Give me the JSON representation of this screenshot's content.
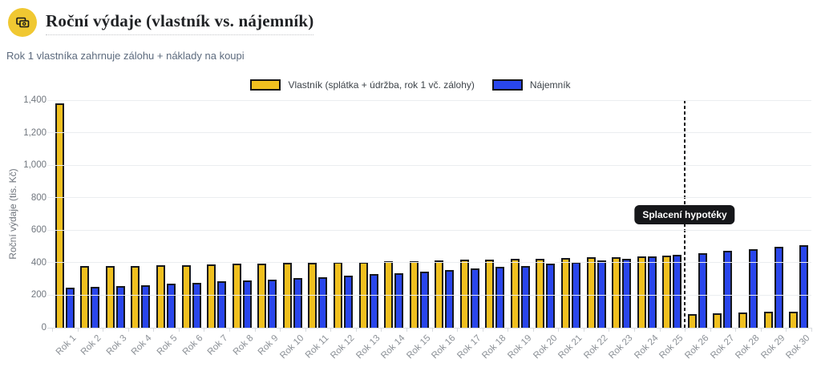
{
  "header": {
    "title": "Roční výdaje (vlastník vs. nájemník)",
    "subtitle": "Rok 1 vlastníka zahrnuje zálohu + náklady na koupi",
    "icon": "banknotes-icon",
    "icon_bg": "#F0C832"
  },
  "chart_data": {
    "type": "bar",
    "title": "Roční výdaje (vlastník vs. nájemník)",
    "xlabel": "",
    "ylabel": "Roční výdaje (tis. Kč)",
    "ylim": [
      0,
      1400
    ],
    "yticks": [
      0,
      200,
      400,
      600,
      800,
      1000,
      1200,
      1400
    ],
    "ytick_labels": [
      "0",
      "200",
      "400",
      "600",
      "800",
      "1,000",
      "1,200",
      "1,400"
    ],
    "grid": true,
    "legend_position": "top",
    "categories": [
      "Rok 1",
      "Rok 2",
      "Rok 3",
      "Rok 4",
      "Rok 5",
      "Rok 6",
      "Rok 7",
      "Rok 8",
      "Rok 9",
      "Rok 10",
      "Rok 11",
      "Rok 12",
      "Rok 13",
      "Rok 14",
      "Rok 15",
      "Rok 16",
      "Rok 17",
      "Rok 18",
      "Rok 19",
      "Rok 20",
      "Rok 21",
      "Rok 22",
      "Rok 23",
      "Rok 24",
      "Rok 25",
      "Rok 26",
      "Rok 27",
      "Rok 28",
      "Rok 29",
      "Rok 30"
    ],
    "series": [
      {
        "name": "Vlastník (splátka + údržba, rok 1 vč. zálohy)",
        "color": "#F0C01F",
        "border": "#16181d",
        "values": [
          1380,
          378,
          380,
          382,
          384,
          387,
          389,
          392,
          394,
          397,
          400,
          402,
          405,
          408,
          411,
          414,
          417,
          420,
          423,
          426,
          429,
          433,
          436,
          439,
          442,
          85,
          89,
          93,
          97,
          101
        ]
      },
      {
        "name": "Nájemník",
        "color": "#2946EC",
        "border": "#16181d",
        "values": [
          245,
          250,
          257,
          263,
          270,
          277,
          284,
          291,
          298,
          306,
          313,
          321,
          329,
          337,
          346,
          355,
          364,
          373,
          382,
          392,
          402,
          412,
          425,
          440,
          450,
          460,
          472,
          484,
          496,
          508
        ]
      }
    ],
    "marker_line": {
      "label": "Splacení hypotéky",
      "position": "between Rok 25 and Rok 26"
    }
  }
}
